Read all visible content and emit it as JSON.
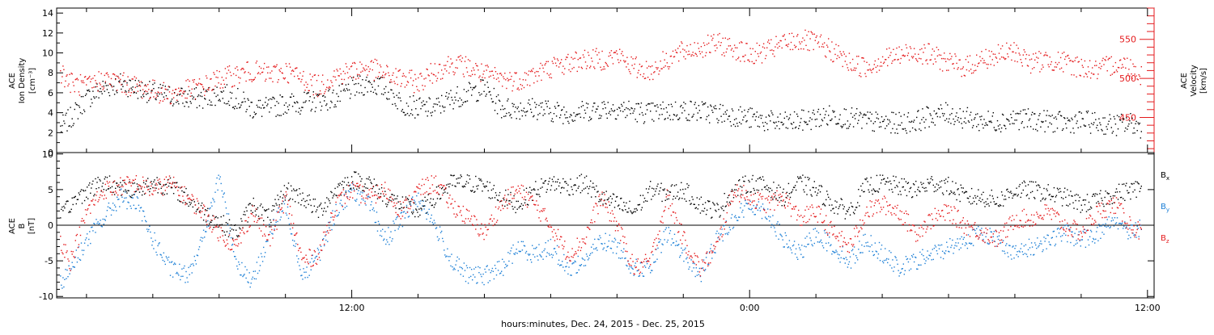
{
  "figure": {
    "xlabel": "hours:minutes, Dec. 24, 2015 - Dec. 25, 2015",
    "x_ticks": [
      "12:00",
      "0:00",
      "12:00"
    ]
  },
  "colors": {
    "axis": "#000000",
    "density": "#000000",
    "velocity": "#e41a1c",
    "bx": "#000000",
    "by": "#1c7fd6",
    "bz": "#e41a1c"
  },
  "chart_data": [
    {
      "type": "scatter",
      "title": "",
      "xlabel": "hours:minutes, Dec. 24, 2015 - Dec. 25, 2015",
      "x_unit": "hours since 00:00 Dec. 24, 2015",
      "xlim": [
        3.1,
        36.2
      ],
      "ylabel_left": [
        "ACE",
        "Ion Density",
        "[cm⁻³]"
      ],
      "ylim_left": [
        0,
        14.5
      ],
      "yticks_left": [
        0,
        2,
        4,
        6,
        8,
        10,
        12,
        14
      ],
      "ylabel_right": [
        "ACE",
        "Velocity",
        "[km/s]"
      ],
      "ylim_right": [
        405,
        590
      ],
      "yticks_right": [
        450,
        500,
        550
      ],
      "series": [
        {
          "name": "",
          "axis": "left",
          "x": [
            3.2,
            3.5,
            4.0,
            4.5,
            5.0,
            5.5,
            6.0,
            6.5,
            7.0,
            7.5,
            8.0,
            8.5,
            9.0,
            9.5,
            10.0,
            10.5,
            11.0,
            11.5,
            12.0,
            12.5,
            13.0,
            13.5,
            14.0,
            14.5,
            15.0,
            15.5,
            16.0,
            16.5,
            17.0,
            17.5,
            18.0,
            18.5,
            19.0,
            19.5,
            20.0,
            20.5,
            21.0,
            21.5,
            22.0,
            22.5,
            23.0,
            23.5,
            24.0,
            24.5,
            25.0,
            25.5,
            26.0,
            26.5,
            27.0,
            27.5,
            28.0,
            28.5,
            29.0,
            29.5,
            30.0,
            30.5,
            31.0,
            31.5,
            32.0,
            32.5,
            33.0,
            33.5,
            34.0,
            34.5,
            35.0,
            35.5,
            35.8
          ],
          "y": [
            2.5,
            3.5,
            5.5,
            6.5,
            7,
            6.5,
            6,
            5.8,
            5.5,
            5.5,
            6,
            5.5,
            4.5,
            4.5,
            5,
            5,
            5.3,
            5.5,
            6.5,
            7,
            6.5,
            5,
            4.5,
            4.5,
            5.5,
            6,
            6.5,
            4.5,
            4.5,
            4.5,
            4.2,
            4,
            4.2,
            4.5,
            4.5,
            4.2,
            4,
            4.2,
            4.3,
            4.2,
            4,
            3.8,
            3.5,
            3.2,
            3,
            3.2,
            3.5,
            3.8,
            3.5,
            3.2,
            3,
            3,
            3.2,
            3.8,
            4,
            3.5,
            3.2,
            3.2,
            3.5,
            3.3,
            3.2,
            3,
            3.2,
            3,
            2.8,
            3,
            2.5
          ]
        },
        {
          "name": "",
          "axis": "right",
          "x": [
            3.2,
            3.5,
            4.0,
            4.5,
            5.0,
            5.5,
            6.0,
            6.5,
            7.0,
            7.5,
            8.0,
            8.5,
            9.0,
            9.5,
            10.0,
            10.5,
            11.0,
            11.5,
            12.0,
            12.5,
            13.0,
            13.5,
            14.0,
            14.5,
            15.0,
            15.5,
            16.0,
            16.5,
            17.0,
            17.5,
            18.0,
            18.5,
            19.0,
            19.5,
            20.0,
            20.5,
            21.0,
            21.5,
            22.0,
            22.5,
            23.0,
            23.5,
            24.0,
            24.5,
            25.0,
            25.5,
            26.0,
            26.5,
            27.0,
            27.5,
            28.0,
            28.5,
            29.0,
            29.5,
            30.0,
            30.5,
            31.0,
            31.5,
            32.0,
            32.5,
            33.0,
            33.5,
            34.0,
            34.5,
            35.0,
            35.5,
            35.8
          ],
          "y": [
            510,
            495,
            490,
            500,
            495,
            490,
            485,
            480,
            485,
            490,
            500,
            505,
            510,
            505,
            510,
            500,
            490,
            505,
            510,
            515,
            505,
            500,
            495,
            510,
            520,
            515,
            505,
            500,
            498,
            505,
            515,
            520,
            525,
            525,
            530,
            515,
            510,
            525,
            535,
            540,
            545,
            540,
            530,
            535,
            545,
            550,
            545,
            535,
            520,
            515,
            525,
            530,
            535,
            530,
            520,
            515,
            525,
            530,
            535,
            520,
            525,
            520,
            515,
            510,
            520,
            515,
            505
          ]
        }
      ]
    },
    {
      "type": "scatter",
      "title": "",
      "xlabel": "hours:minutes, Dec. 24, 2015 - Dec. 25, 2015",
      "x_unit": "hours since 00:00 Dec. 24, 2015",
      "xlim": [
        3.1,
        36.2
      ],
      "ylabel": [
        "ACE",
        "B",
        "[nT]"
      ],
      "ylim": [
        -10.2,
        10.2
      ],
      "yticks": [
        -10,
        -5,
        0,
        5,
        10
      ],
      "zero_line": true,
      "legend_placement": "right",
      "series": [
        {
          "name": "Bx",
          "label": "B",
          "sub": "x",
          "x": [
            3.2,
            3.5,
            4.0,
            4.5,
            5.0,
            5.5,
            6.0,
            6.5,
            7.0,
            7.5,
            8.0,
            8.5,
            9.0,
            9.5,
            10.0,
            10.5,
            11.0,
            11.5,
            12.0,
            12.5,
            13.0,
            13.5,
            14.0,
            14.5,
            15.0,
            15.5,
            16.0,
            16.5,
            17.0,
            17.5,
            18.0,
            18.5,
            19.0,
            19.5,
            20.0,
            20.5,
            21.0,
            21.5,
            22.0,
            22.5,
            23.0,
            23.5,
            24.0,
            24.5,
            25.0,
            25.5,
            26.0,
            26.5,
            27.0,
            27.5,
            28.0,
            28.5,
            29.0,
            29.5,
            30.0,
            30.5,
            31.0,
            31.5,
            32.0,
            32.5,
            33.0,
            33.5,
            34.0,
            34.5,
            35.0,
            35.5,
            35.8
          ],
          "y": [
            1,
            3,
            5,
            6,
            5.5,
            5,
            6,
            5.5,
            4,
            2,
            0.5,
            -1,
            3,
            1,
            5,
            4,
            2,
            5,
            6.5,
            6,
            4,
            3,
            2,
            4,
            6,
            6,
            5.5,
            4,
            3,
            5,
            6,
            5.5,
            6,
            4,
            3,
            2,
            5,
            4.5,
            5,
            3,
            2,
            5,
            6,
            5.5,
            4,
            6,
            5,
            3,
            2,
            5.5,
            6,
            5.5,
            5,
            6,
            5.5,
            4,
            4,
            3.5,
            5,
            5,
            4.5,
            4,
            3,
            3.5,
            4.5,
            5,
            5.3
          ]
        },
        {
          "name": "By",
          "label": "B",
          "sub": "y",
          "x": [
            3.2,
            3.5,
            4.0,
            4.5,
            5.0,
            5.5,
            6.0,
            6.5,
            7.0,
            7.5,
            8.0,
            8.5,
            9.0,
            9.5,
            10.0,
            10.5,
            11.0,
            11.5,
            12.0,
            12.5,
            13.0,
            13.5,
            14.0,
            14.5,
            15.0,
            15.5,
            16.0,
            16.5,
            17.0,
            17.5,
            18.0,
            18.5,
            19.0,
            19.5,
            20.0,
            20.5,
            21.0,
            21.5,
            22.0,
            22.5,
            23.0,
            23.5,
            24.0,
            24.5,
            25.0,
            25.5,
            26.0,
            26.5,
            27.0,
            27.5,
            28.0,
            28.5,
            29.0,
            29.5,
            30.0,
            30.5,
            31.0,
            31.5,
            32.0,
            32.5,
            33.0,
            33.5,
            34.0,
            34.5,
            35.0,
            35.5,
            35.8
          ],
          "y": [
            -8,
            -6,
            -2,
            1,
            4,
            3,
            -2,
            -6,
            -7,
            -2,
            7,
            -5,
            -8,
            -1,
            3,
            -7,
            -4,
            2,
            5,
            3,
            -2,
            1,
            4,
            0,
            -5,
            -7,
            -7,
            -6,
            -3,
            -4,
            -3,
            -6,
            -5,
            -2,
            -3,
            -6,
            -6,
            -1,
            -4,
            -7,
            -2,
            1,
            3,
            2,
            -2,
            -4,
            -1,
            -3,
            -5,
            -2,
            -4,
            -6,
            -5,
            -4,
            -3,
            -2,
            -1,
            -2,
            -4,
            -3,
            -2,
            -1,
            -2,
            -1,
            1,
            -1,
            0
          ]
        },
        {
          "name": "Bz",
          "label": "B",
          "sub": "z",
          "x": [
            3.2,
            3.5,
            4.0,
            4.5,
            5.0,
            5.5,
            6.0,
            6.5,
            7.0,
            7.5,
            8.0,
            8.5,
            9.0,
            9.5,
            10.0,
            10.5,
            11.0,
            11.5,
            12.0,
            12.5,
            13.0,
            13.5,
            14.0,
            14.5,
            15.0,
            15.5,
            16.0,
            16.5,
            17.0,
            17.5,
            18.0,
            18.5,
            19.0,
            19.5,
            20.0,
            20.5,
            21.0,
            21.5,
            22.0,
            22.5,
            23.0,
            23.5,
            24.0,
            24.5,
            25.0,
            25.5,
            26.0,
            26.5,
            27.0,
            27.5,
            28.0,
            28.5,
            29.0,
            29.5,
            30.0,
            30.5,
            31.0,
            31.5,
            32.0,
            32.5,
            33.0,
            33.5,
            34.0,
            34.5,
            35.0,
            35.5,
            35.8
          ],
          "y": [
            -2,
            -5,
            2,
            5,
            5.5,
            6,
            5,
            6,
            4,
            2,
            -1,
            -3,
            2,
            -2,
            4,
            -5,
            -4,
            3,
            5,
            4,
            5,
            2,
            5,
            6,
            3,
            1,
            -1,
            3,
            5,
            3,
            0,
            -4,
            -2,
            4,
            0,
            -6,
            -5,
            4,
            -2,
            -6,
            -3,
            5,
            4,
            3,
            4,
            1,
            2,
            -1,
            -3,
            2,
            3,
            2,
            -1,
            1,
            2,
            0,
            -1,
            -2,
            1,
            1,
            2,
            0,
            -1,
            2,
            3,
            0,
            -1
          ]
        }
      ]
    }
  ]
}
